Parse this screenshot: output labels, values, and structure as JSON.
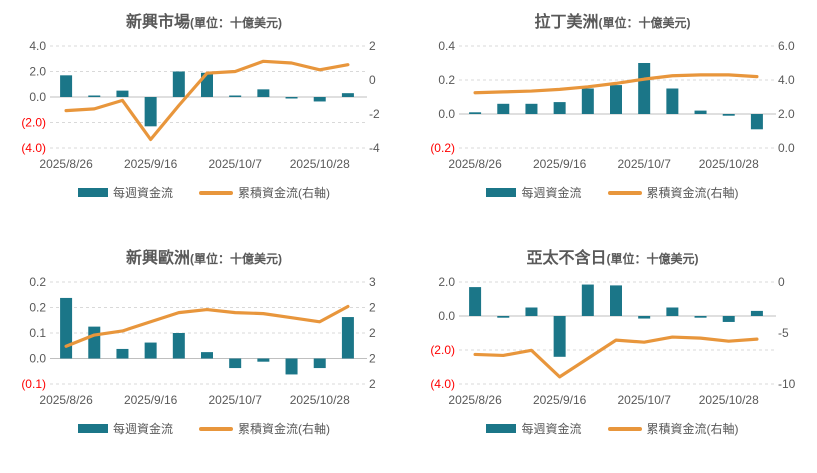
{
  "colors": {
    "bar": "#1B7688",
    "line": "#E8963C",
    "text": "#595959",
    "negative": "#FF0000",
    "gridline": "#D9D9D9",
    "zero_line": "#BFBFBF",
    "background": "#FFFFFF"
  },
  "chart_data": [
    {
      "type": "bar+line",
      "title": "新興市場",
      "unit_suffix": "(單位：十億美元)",
      "n_points": 11,
      "x_tick_labels": [
        "2025/8/26",
        "2025/9/16",
        "2025/10/7",
        "2025/10/28"
      ],
      "x_tick_indices": [
        0,
        3,
        6,
        9
      ],
      "left_axis": {
        "tick_labels": [
          "4.0",
          "2.0",
          "0.0",
          "(2.0)",
          "(4.0)"
        ],
        "max": 4.0,
        "min": -4.0
      },
      "right_axis": {
        "tick_labels": [
          "2",
          "0",
          "-2",
          "-4"
        ],
        "top": 2.0,
        "bottom": -4.0
      },
      "series": [
        {
          "name": "每週資金流",
          "type": "bar",
          "axis": "left",
          "values": [
            1.7,
            0.1,
            0.5,
            -2.3,
            2.0,
            1.9,
            0.1,
            0.6,
            -0.1,
            -0.35,
            0.3
          ]
        },
        {
          "name": "累積資金流(右軸)",
          "type": "line",
          "axis": "right",
          "values": [
            -1.8,
            -1.7,
            -1.2,
            -3.5,
            -1.5,
            0.4,
            0.5,
            1.1,
            1.0,
            0.6,
            0.9
          ]
        }
      ]
    },
    {
      "type": "bar+line",
      "title": "拉丁美洲",
      "unit_suffix": "(單位：十億美元)",
      "n_points": 11,
      "x_tick_labels": [
        "2025/8/26",
        "2025/9/16",
        "2025/10/7",
        "2025/10/28"
      ],
      "x_tick_indices": [
        0,
        3,
        6,
        9
      ],
      "left_axis": {
        "tick_labels": [
          "0.4",
          "0.2",
          "0.0",
          "(0.2)"
        ],
        "max": 0.4,
        "min": -0.2
      },
      "right_axis": {
        "tick_labels": [
          "6.0",
          "4.0",
          "2.0",
          "0.0"
        ],
        "top": 6.0,
        "bottom": 0.0
      },
      "series": [
        {
          "name": "每週資金流",
          "type": "bar",
          "axis": "left",
          "values": [
            0.01,
            0.06,
            0.06,
            0.07,
            0.15,
            0.17,
            0.3,
            0.15,
            0.02,
            -0.01,
            -0.09
          ]
        },
        {
          "name": "累積資金流(右軸)",
          "type": "line",
          "axis": "right",
          "values": [
            3.25,
            3.3,
            3.35,
            3.45,
            3.6,
            3.8,
            4.05,
            4.25,
            4.3,
            4.3,
            4.2
          ]
        }
      ]
    },
    {
      "type": "bar+line",
      "title": "新興歐洲",
      "unit_suffix": "(單位：十億美元)",
      "n_points": 11,
      "x_tick_labels": [
        "2025/8/26",
        "2025/9/16",
        "2025/10/7",
        "2025/10/28"
      ],
      "x_tick_indices": [
        0,
        3,
        6,
        9
      ],
      "left_axis": {
        "tick_labels": [
          "0.2",
          "0.2",
          "0.1",
          "0.0",
          "(0.1)"
        ],
        "max": 0.24,
        "min": -0.08
      },
      "right_axis": {
        "tick_labels": [
          "3",
          "2",
          "2",
          "2",
          "2"
        ],
        "top": 2.5,
        "bottom": 1.5
      },
      "series": [
        {
          "name": "每週資金流",
          "type": "bar",
          "axis": "left",
          "values": [
            0.19,
            0.1,
            0.03,
            0.05,
            0.08,
            0.02,
            -0.03,
            -0.01,
            -0.05,
            -0.03,
            0.13
          ]
        },
        {
          "name": "累積資金流(右軸)",
          "type": "line",
          "axis": "right",
          "values": [
            1.87,
            1.98,
            2.02,
            2.11,
            2.2,
            2.23,
            2.2,
            2.19,
            2.15,
            2.11,
            2.26
          ]
        }
      ]
    },
    {
      "type": "bar+line",
      "title": "亞太不含日",
      "unit_suffix": "(單位：十億美元)",
      "n_points": 11,
      "x_tick_labels": [
        "2025/8/26",
        "2025/9/16",
        "2025/10/7",
        "2025/10/28"
      ],
      "x_tick_indices": [
        0,
        3,
        6,
        9
      ],
      "left_axis": {
        "tick_labels": [
          "2.0",
          "0.0",
          "(2.0)",
          "(4.0)"
        ],
        "max": 2.0,
        "min": -4.0
      },
      "right_axis": {
        "tick_labels": [
          "0",
          "-5",
          "-10"
        ],
        "top": 0.0,
        "bottom": -10.0
      },
      "series": [
        {
          "name": "每週資金流",
          "type": "bar",
          "axis": "left",
          "values": [
            1.7,
            -0.1,
            0.5,
            -2.4,
            1.85,
            1.8,
            -0.15,
            0.5,
            -0.1,
            -0.35,
            0.3
          ]
        },
        {
          "name": "累積資金流(右軸)",
          "type": "line",
          "axis": "right",
          "values": [
            -7.1,
            -7.2,
            -6.7,
            -9.3,
            -7.5,
            -5.7,
            -5.9,
            -5.4,
            -5.5,
            -5.8,
            -5.6
          ]
        }
      ]
    }
  ]
}
